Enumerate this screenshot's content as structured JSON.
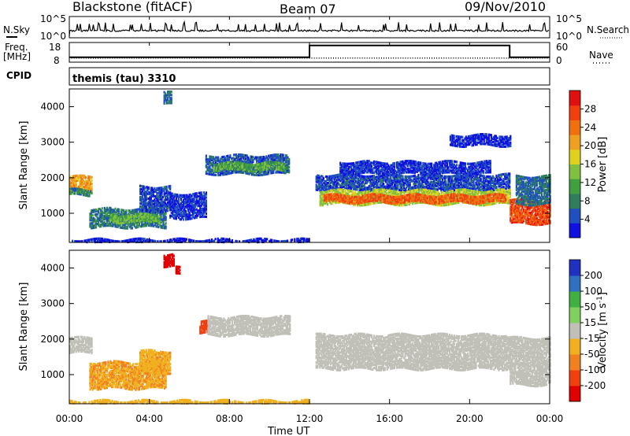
{
  "header": {
    "station": "Blackstone (fitACF)",
    "beam": "Beam 07",
    "date": "09/Nov/2010"
  },
  "status_panels": {
    "nsky_label": "N.Sky",
    "nsky_ticks": [
      "10^5",
      "10^0"
    ],
    "nsearch_label": "N.Search",
    "nsearch_ticks": [
      "10^5",
      "10^0"
    ],
    "freq_label": "Freq.",
    "freq_unit": "[MHz]",
    "freq_ticks": [
      "18",
      "8"
    ],
    "nave_label": "Nave",
    "nave_ticks": [
      "60",
      "0"
    ],
    "cpid_label": "CPID",
    "cpid_value": "themis (tau) 3310"
  },
  "axes": {
    "ylabel": "Slant Range [km]",
    "xlabel": "Time UT",
    "y_ticks": [
      "1000",
      "2000",
      "3000",
      "4000"
    ],
    "x_ticks": [
      "00:00",
      "04:00",
      "08:00",
      "12:00",
      "16:00",
      "20:00",
      "00:00"
    ]
  },
  "colorbars": {
    "power": {
      "label": "Power [dB]",
      "ticks": [
        "4",
        "8",
        "12",
        "16",
        "20",
        "24",
        "28"
      ],
      "colors": [
        "#1010e0",
        "#2050c0",
        "#2f7f5f",
        "#40a040",
        "#80c040",
        "#e0d020",
        "#f0a020",
        "#f07010",
        "#f04010",
        "#e01010"
      ]
    },
    "velocity": {
      "label": "Velocity [m s",
      "label_sup": "-1",
      "label_end": "]",
      "ticks": [
        "200",
        "100",
        "50",
        "15",
        "-15",
        "-50",
        "-100",
        "-200"
      ],
      "colors": [
        "#2030c0",
        "#3070c0",
        "#40b040",
        "#80d060",
        "#c0c0b8",
        "#f0b020",
        "#f08020",
        "#f04010",
        "#e00000"
      ]
    }
  },
  "chart_data": [
    {
      "type": "heatmap",
      "name": "power",
      "x_range_hours": [
        0,
        24
      ],
      "y_range_km": [
        180,
        4500
      ],
      "regions": [
        {
          "t0": 0.0,
          "t1": 1.1,
          "r0": 1650,
          "r1": 2100,
          "val": 22
        },
        {
          "t0": 0.0,
          "t1": 1.1,
          "r0": 1550,
          "r1": 1700,
          "val": 10
        },
        {
          "t0": 1.0,
          "t1": 4.8,
          "r0": 650,
          "r1": 1150,
          "val": 9
        },
        {
          "t0": 2.0,
          "t1": 4.5,
          "r0": 800,
          "r1": 1000,
          "val": 14
        },
        {
          "t0": 3.5,
          "t1": 5.0,
          "r0": 1100,
          "r1": 1800,
          "val": 6
        },
        {
          "t0": 4.7,
          "t1": 5.1,
          "r0": 4100,
          "r1": 4450,
          "val": 8
        },
        {
          "t0": 5.0,
          "t1": 6.8,
          "r0": 900,
          "r1": 1600,
          "val": 5
        },
        {
          "t0": 6.8,
          "t1": 11.0,
          "r0": 2150,
          "r1": 2650,
          "val": 7
        },
        {
          "t0": 7.2,
          "t1": 10.8,
          "r0": 2250,
          "r1": 2450,
          "val": 13
        },
        {
          "t0": 12.3,
          "t1": 22.0,
          "r0": 1700,
          "r1": 2150,
          "val": 6
        },
        {
          "t0": 12.5,
          "t1": 22.0,
          "r0": 1300,
          "r1": 1700,
          "val": 17
        },
        {
          "t0": 12.7,
          "t1": 21.8,
          "r0": 1350,
          "r1": 1550,
          "val": 26
        },
        {
          "t0": 13.5,
          "t1": 21.0,
          "r0": 2150,
          "r1": 2500,
          "val": 5
        },
        {
          "t0": 19.0,
          "t1": 22.0,
          "r0": 2950,
          "r1": 3250,
          "val": 4
        },
        {
          "t0": 22.0,
          "t1": 24.0,
          "r0": 750,
          "r1": 1400,
          "val": 27
        },
        {
          "t0": 22.3,
          "t1": 24.0,
          "r0": 1300,
          "r1": 2100,
          "val": 8
        },
        {
          "t0": 0.0,
          "t1": 12.0,
          "r0": 190,
          "r1": 300,
          "val": 4
        }
      ]
    },
    {
      "type": "heatmap",
      "name": "velocity",
      "x_range_hours": [
        0,
        24
      ],
      "y_range_km": [
        180,
        4500
      ],
      "regions": [
        {
          "t0": 0.0,
          "t1": 1.1,
          "r0": 1650,
          "r1": 2100,
          "val": 0
        },
        {
          "t0": 1.0,
          "t1": 4.8,
          "r0": 650,
          "r1": 1400,
          "val": -45
        },
        {
          "t0": 3.5,
          "t1": 5.0,
          "r0": 1100,
          "r1": 1700,
          "val": -40
        },
        {
          "t0": 4.7,
          "t1": 5.2,
          "r0": 4100,
          "r1": 4450,
          "val": -220
        },
        {
          "t0": 5.3,
          "t1": 5.5,
          "r0": 3850,
          "r1": 4050,
          "val": -220
        },
        {
          "t0": 6.5,
          "t1": 6.9,
          "r0": 2200,
          "r1": 2550,
          "val": -180
        },
        {
          "t0": 6.9,
          "t1": 11.0,
          "r0": 2150,
          "r1": 2650,
          "val": 0
        },
        {
          "t0": 12.3,
          "t1": 22.0,
          "r0": 1200,
          "r1": 2150,
          "val": 0
        },
        {
          "t0": 22.0,
          "t1": 24.0,
          "r0": 750,
          "r1": 2100,
          "val": 0
        },
        {
          "t0": 0.0,
          "t1": 12.0,
          "r0": 190,
          "r1": 300,
          "val": -30
        }
      ]
    },
    {
      "type": "line",
      "name": "frequency",
      "x_hours": [
        0,
        12.0,
        12.0,
        22.0,
        22.0,
        24.0
      ],
      "y_mhz": [
        10.5,
        10.5,
        16.5,
        16.5,
        10.5,
        10.5
      ]
    }
  ]
}
